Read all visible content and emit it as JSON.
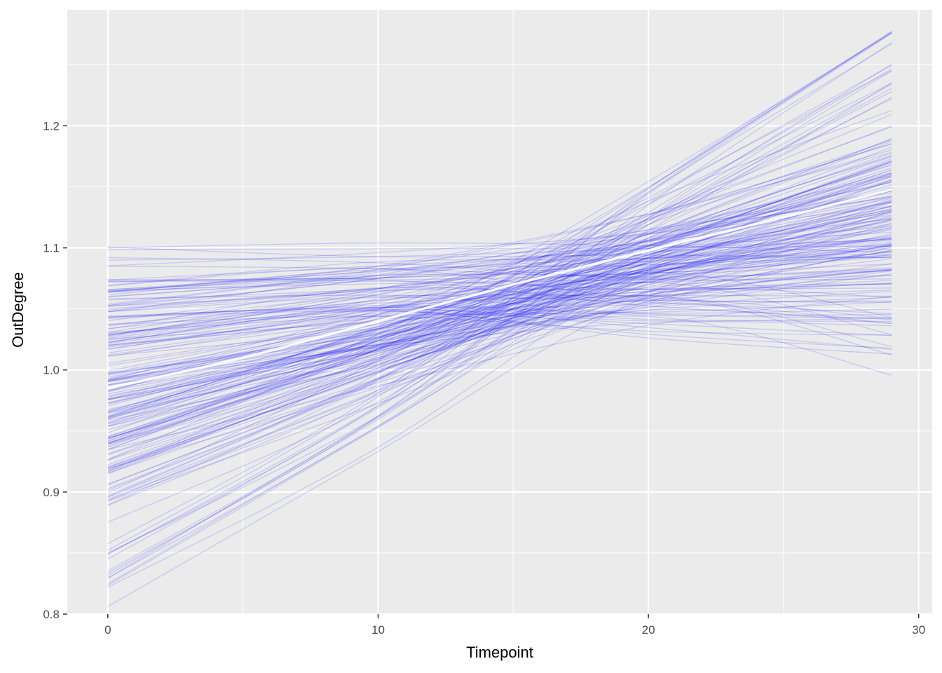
{
  "chart_data": {
    "type": "line",
    "title": "",
    "xlabel": "Timepoint",
    "ylabel": "OutDegree",
    "xlim": [
      -1.5,
      30.5
    ],
    "ylim": [
      0.8,
      1.295
    ],
    "x_ticks": [
      0,
      10,
      20,
      30
    ],
    "x_tick_labels": [
      "0",
      "10",
      "20",
      "30"
    ],
    "y_ticks": [
      0.8,
      0.9,
      1.0,
      1.1,
      1.2
    ],
    "y_tick_labels": [
      "0.8",
      "0.9",
      "1.0",
      "1.1",
      "1.2"
    ],
    "grid": true,
    "legend": "none",
    "background_color": "#ebebeb",
    "line_color": "#0000ff",
    "mean_line_color": "#ffffff",
    "mean_series": {
      "x": [
        0,
        5,
        10,
        15,
        20,
        25,
        29
      ],
      "y": [
        0.985,
        1.01,
        1.04,
        1.07,
        1.098,
        1.125,
        1.148
      ]
    },
    "series_description": "About 200 individual trajectories from Timepoint 0 to 29, drawn as semi-transparent blue lines; each is given by its values at Timepoint 0, 10, 20 and 29.",
    "series_values": [
      [
        1.099,
        1.099,
        1.099,
        1.1
      ],
      [
        1.074,
        1.08,
        1.09,
        1.1
      ],
      [
        1.07,
        1.082,
        1.1,
        1.12
      ],
      [
        1.065,
        1.075,
        1.085,
        1.095
      ],
      [
        1.06,
        1.07,
        1.05,
        1.04
      ],
      [
        1.055,
        1.065,
        1.06,
        1.055
      ],
      [
        1.05,
        1.07,
        1.1,
        1.13
      ],
      [
        1.045,
        1.068,
        1.11,
        1.16
      ],
      [
        1.04,
        1.06,
        1.08,
        1.09
      ],
      [
        1.035,
        1.055,
        1.06,
        1.065
      ],
      [
        1.03,
        1.06,
        1.1,
        1.14
      ],
      [
        1.025,
        1.05,
        1.04,
        1.038
      ],
      [
        1.02,
        1.055,
        1.11,
        1.17
      ],
      [
        1.015,
        1.045,
        1.09,
        1.12
      ],
      [
        1.01,
        1.04,
        1.07,
        1.08
      ],
      [
        1.005,
        1.035,
        1.06,
        1.05
      ],
      [
        1.0,
        1.04,
        1.1,
        1.16
      ],
      [
        0.995,
        1.035,
        1.08,
        1.11
      ],
      [
        0.99,
        1.03,
        1.07,
        1.09
      ],
      [
        0.985,
        1.028,
        1.06,
        1.015
      ],
      [
        0.98,
        1.035,
        1.11,
        1.18
      ],
      [
        0.975,
        1.03,
        1.09,
        1.14
      ],
      [
        0.97,
        1.025,
        1.08,
        1.12
      ],
      [
        0.965,
        1.02,
        1.07,
        1.1
      ],
      [
        0.96,
        1.03,
        1.12,
        1.2
      ],
      [
        0.955,
        1.02,
        1.09,
        1.15
      ],
      [
        0.95,
        1.015,
        1.08,
        1.13
      ],
      [
        0.945,
        1.01,
        1.06,
        1.09
      ],
      [
        0.94,
        1.02,
        1.13,
        1.23
      ],
      [
        0.935,
        1.01,
        1.09,
        1.16
      ],
      [
        0.93,
        1.005,
        1.08,
        1.14
      ],
      [
        0.925,
        1.0,
        1.07,
        1.11
      ],
      [
        0.92,
        1.01,
        1.14,
        1.26
      ],
      [
        0.915,
        1.0,
        1.1,
        1.17
      ],
      [
        0.91,
        0.995,
        1.08,
        1.13
      ],
      [
        0.905,
        0.99,
        1.07,
        1.1
      ],
      [
        0.885,
        0.99,
        1.13,
        1.25
      ],
      [
        0.845,
        0.97,
        1.14,
        1.27
      ],
      [
        0.84,
        0.96,
        1.1,
        1.18
      ],
      [
        0.82,
        0.95,
        1.08,
        1.12
      ]
    ]
  }
}
